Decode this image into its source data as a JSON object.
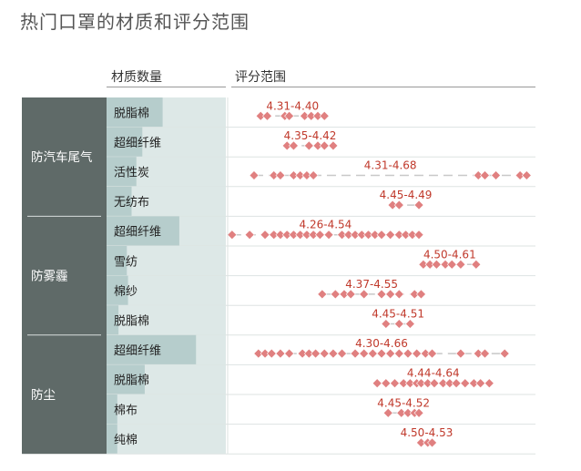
{
  "title": "热门口罩的材质和评分范围",
  "headers": {
    "material_count": "材质数量",
    "score_range": "评分范围"
  },
  "chart_data": {
    "type": "strip",
    "title": "热门口罩的材质和评分范围",
    "colors": {
      "group": "#5f6a68",
      "bar": "#b6cdcc",
      "bar_bg": "#dde8e7",
      "diamond": "#e08080",
      "range_label": "#c0392b"
    },
    "x_range": [
      4.05,
      4.75
    ],
    "groups": [
      {
        "name": "防汽车尾气",
        "rows": [
          {
            "material": "脱脂棉",
            "count": 0.47,
            "range_label": "4.31-4.40",
            "values": [
              4.125,
              4.14,
              4.18,
              4.19,
              4.225,
              4.24,
              4.255,
              4.27
            ]
          },
          {
            "material": "超细纤维",
            "count": 0.3,
            "range_label": "4.35-4.42",
            "values": [
              4.185,
              4.2,
              4.235,
              4.255,
              4.27,
              4.29
            ]
          },
          {
            "material": "活性炭",
            "count": 0.25,
            "range_label": "4.31-4.68",
            "values": [
              4.11,
              4.155,
              4.17,
              4.2,
              4.215,
              4.23,
              4.245,
              4.62,
              4.635,
              4.66,
              4.715,
              4.73
            ]
          },
          {
            "material": "无纺布",
            "count": 0.21,
            "range_label": "4.45-4.49",
            "values": [
              4.425,
              4.44,
              4.485
            ]
          }
        ]
      },
      {
        "name": "防雾霾",
        "rows": [
          {
            "material": "超细纤维",
            "count": 0.61,
            "range_label": "4.26-4.54",
            "values": [
              4.06,
              4.1,
              4.135,
              4.155,
              4.17,
              4.185,
              4.2,
              4.215,
              4.23,
              4.245,
              4.26,
              4.28,
              4.31,
              4.325,
              4.34,
              4.355,
              4.37,
              4.385,
              4.4,
              4.42,
              4.44,
              4.455,
              4.47,
              4.485
            ]
          },
          {
            "material": "雪纺",
            "count": 0.17,
            "range_label": "4.50-4.61",
            "values": [
              4.495,
              4.51,
              4.525,
              4.545,
              4.56,
              4.58,
              4.615
            ]
          },
          {
            "material": "棉纱",
            "count": 0.18,
            "range_label": "4.37-4.55",
            "values": [
              4.265,
              4.295,
              4.315,
              4.33,
              4.36,
              4.4,
              4.42,
              4.44,
              4.475,
              4.49
            ]
          },
          {
            "material": "脱脂棉",
            "count": 0.1,
            "range_label": "4.45-4.51",
            "values": [
              4.41,
              4.44,
              4.465
            ]
          }
        ]
      },
      {
        "name": "防尘",
        "rows": [
          {
            "material": "超细纤维",
            "count": 0.75,
            "range_label": "4.30-4.66",
            "values": [
              4.12,
              4.135,
              4.15,
              4.17,
              4.19,
              4.22,
              4.235,
              4.25,
              4.27,
              4.29,
              4.31,
              4.34,
              4.36,
              4.38,
              4.4,
              4.42,
              4.44,
              4.46,
              4.48,
              4.5,
              4.515,
              4.58,
              4.62,
              4.635,
              4.68
            ]
          },
          {
            "material": "脱脂棉",
            "count": 0.32,
            "range_label": "4.44-4.64",
            "values": [
              4.39,
              4.41,
              4.43,
              4.45,
              4.465,
              4.48,
              4.49,
              4.505,
              4.52,
              4.54,
              4.555,
              4.57,
              4.59,
              4.61,
              4.625,
              4.645
            ]
          },
          {
            "material": "棉布",
            "count": 0.09,
            "range_label": "4.45-4.52",
            "values": [
              4.415,
              4.445,
              4.46,
              4.475,
              4.485
            ]
          },
          {
            "material": "纯棉",
            "count": 0.09,
            "range_label": "4.50-4.53",
            "values": [
              4.49,
              4.505,
              4.515
            ]
          }
        ]
      }
    ]
  }
}
